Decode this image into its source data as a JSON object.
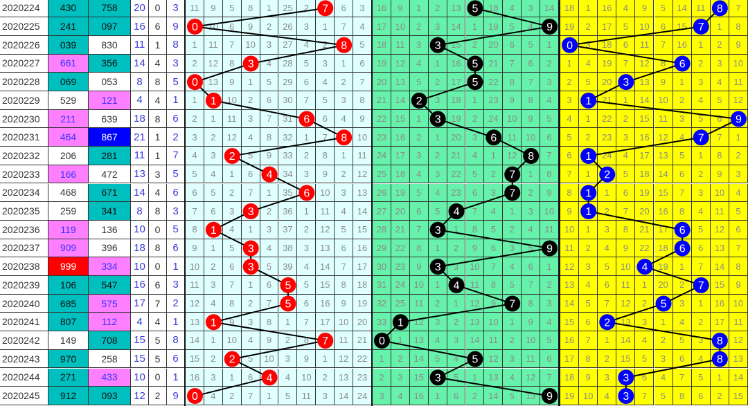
{
  "colors": {
    "zone1_bg": "#e0ffff",
    "zone2_bg": "#66f2aa",
    "zone3_bg": "#ffff00",
    "zone1_ball": "#ff0000",
    "zone2_ball": "#000000",
    "zone3_ball": "#0000ff",
    "teal": "#00bfbf",
    "pink": "#ff80ff",
    "blue": "#0000ff",
    "red": "#ff0000"
  },
  "chart_data": {
    "type": "table",
    "rows": [
      {
        "period": "2020224",
        "a": "430",
        "a_bg": "teal",
        "b": "758",
        "b_bg": "teal",
        "sum": "20",
        "span": "0",
        "tail": "3",
        "z1": [
          11,
          9,
          5,
          8,
          1,
          25,
          2,
          7,
          6,
          3
        ],
        "z2": [
          16,
          9,
          1,
          2,
          13,
          5,
          18,
          4,
          3,
          14
        ],
        "z3": [
          18,
          1,
          16,
          4,
          9,
          5,
          14,
          11,
          8,
          7
        ]
      },
      {
        "period": "2020225",
        "a": "241",
        "a_bg": "teal",
        "b": "097",
        "b_bg": "teal",
        "sum": "16",
        "span": "6",
        "tail": "9",
        "z1": [
          0,
          10,
          6,
          9,
          2,
          26,
          3,
          1,
          7,
          4
        ],
        "z2": [
          17,
          10,
          2,
          3,
          14,
          1,
          19,
          5,
          4,
          9
        ],
        "z3": [
          19,
          2,
          17,
          5,
          10,
          6,
          15,
          7,
          1,
          8
        ]
      },
      {
        "period": "2020226",
        "a": "039",
        "a_bg": "teal",
        "b": "830",
        "b_bg": "white",
        "sum": "11",
        "span": "1",
        "tail": "8",
        "z1": [
          1,
          11,
          7,
          10,
          3,
          27,
          4,
          2,
          8,
          5
        ],
        "z2": [
          18,
          11,
          3,
          3,
          15,
          2,
          20,
          6,
          5,
          1
        ],
        "z3": [
          0,
          3,
          18,
          6,
          11,
          7,
          16,
          1,
          2,
          9
        ]
      },
      {
        "period": "2020227",
        "a": "661",
        "a_bg": "pink",
        "b": "356",
        "b_bg": "teal",
        "sum": "14",
        "span": "4",
        "tail": "3",
        "z1": [
          2,
          12,
          8,
          3,
          4,
          28,
          5,
          3,
          1,
          6
        ],
        "z2": [
          19,
          12,
          4,
          1,
          16,
          5,
          21,
          7,
          6,
          2
        ],
        "z3": [
          1,
          4,
          19,
          7,
          12,
          8,
          6,
          2,
          3,
          10
        ]
      },
      {
        "period": "2020228",
        "a": "069",
        "a_bg": "teal",
        "b": "053",
        "b_bg": "white",
        "sum": "8",
        "span": "8",
        "tail": "5",
        "z1": [
          0,
          13,
          9,
          1,
          5,
          29,
          6,
          4,
          2,
          7
        ],
        "z2": [
          20,
          13,
          5,
          2,
          17,
          5,
          22,
          8,
          7,
          3
        ],
        "z3": [
          2,
          5,
          20,
          3,
          13,
          9,
          1,
          3,
          4,
          11
        ]
      },
      {
        "period": "2020229",
        "a": "529",
        "a_bg": "white",
        "b": "121",
        "b_bg": "pink",
        "sum": "4",
        "span": "4",
        "tail": "1",
        "z1": [
          1,
          1,
          10,
          2,
          6,
          30,
          7,
          5,
          3,
          8
        ],
        "z2": [
          21,
          14,
          2,
          3,
          18,
          1,
          23,
          9,
          8,
          4
        ],
        "z3": [
          3,
          1,
          21,
          1,
          14,
          10,
          2,
          4,
          5,
          12
        ]
      },
      {
        "period": "2020230",
        "a": "211",
        "a_bg": "pink",
        "b": "639",
        "b_bg": "white",
        "sum": "18",
        "span": "8",
        "tail": "6",
        "z1": [
          2,
          1,
          11,
          3,
          7,
          31,
          6,
          6,
          4,
          9
        ],
        "z2": [
          22,
          15,
          1,
          3,
          19,
          2,
          24,
          10,
          9,
          5
        ],
        "z3": [
          4,
          1,
          22,
          2,
          15,
          11,
          3,
          5,
          6,
          9
        ]
      },
      {
        "period": "2020231",
        "a": "464",
        "a_bg": "pink",
        "b": "867",
        "b_bg": "blue",
        "sum": "21",
        "span": "1",
        "tail": "2",
        "z1": [
          3,
          2,
          12,
          4,
          8,
          32,
          1,
          7,
          8,
          10
        ],
        "z2": [
          23,
          16,
          2,
          1,
          20,
          3,
          6,
          11,
          10,
          6
        ],
        "z3": [
          5,
          2,
          23,
          3,
          16,
          12,
          4,
          7,
          7,
          1
        ]
      },
      {
        "period": "2020232",
        "a": "206",
        "a_bg": "white",
        "b": "281",
        "b_bg": "teal",
        "sum": "11",
        "span": "1",
        "tail": "7",
        "z1": [
          4,
          3,
          2,
          5,
          9,
          33,
          2,
          8,
          1,
          11
        ],
        "z2": [
          24,
          17,
          3,
          2,
          21,
          4,
          1,
          12,
          8,
          7
        ],
        "z3": [
          6,
          1,
          24,
          4,
          17,
          13,
          5,
          1,
          8,
          2
        ]
      },
      {
        "period": "2020233",
        "a": "166",
        "a_bg": "pink",
        "b": "472",
        "b_bg": "white",
        "sum": "13",
        "span": "3",
        "tail": "5",
        "z1": [
          5,
          4,
          1,
          6,
          4,
          34,
          3,
          9,
          2,
          12
        ],
        "z2": [
          25,
          18,
          4,
          3,
          22,
          5,
          2,
          7,
          1,
          8
        ],
        "z3": [
          7,
          1,
          2,
          5,
          18,
          14,
          6,
          2,
          9,
          3
        ]
      },
      {
        "period": "2020234",
        "a": "468",
        "a_bg": "white",
        "b": "671",
        "b_bg": "teal",
        "sum": "14",
        "span": "4",
        "tail": "6",
        "z1": [
          6,
          5,
          2,
          7,
          1,
          35,
          6,
          10,
          3,
          13
        ],
        "z2": [
          26,
          19,
          5,
          4,
          23,
          6,
          3,
          7,
          2,
          9
        ],
        "z3": [
          8,
          1,
          1,
          6,
          19,
          15,
          7,
          3,
          10,
          4
        ]
      },
      {
        "period": "2020235",
        "a": "259",
        "a_bg": "white",
        "b": "341",
        "b_bg": "teal",
        "sum": "8",
        "span": "8",
        "tail": "3",
        "z1": [
          7,
          6,
          3,
          3,
          2,
          36,
          1,
          11,
          4,
          14
        ],
        "z2": [
          27,
          20,
          6,
          5,
          4,
          7,
          4,
          1,
          3,
          10
        ],
        "z3": [
          9,
          1,
          2,
          7,
          20,
          16,
          8,
          4,
          11,
          5
        ]
      },
      {
        "period": "2020236",
        "a": "119",
        "a_bg": "pink",
        "b": "136",
        "b_bg": "white",
        "sum": "10",
        "span": "0",
        "tail": "5",
        "z1": [
          8,
          1,
          4,
          1,
          3,
          37,
          2,
          12,
          5,
          15
        ],
        "z2": [
          28,
          21,
          7,
          3,
          1,
          8,
          5,
          2,
          4,
          11
        ],
        "z3": [
          10,
          1,
          3,
          8,
          21,
          17,
          6,
          5,
          12,
          6
        ]
      },
      {
        "period": "2020237",
        "a": "909",
        "a_bg": "pink",
        "b": "396",
        "b_bg": "white",
        "sum": "18",
        "span": "8",
        "tail": "6",
        "z1": [
          9,
          1,
          5,
          3,
          4,
          38,
          3,
          13,
          6,
          16
        ],
        "z2": [
          29,
          22,
          8,
          1,
          2,
          9,
          6,
          3,
          5,
          9
        ],
        "z3": [
          11,
          2,
          4,
          9,
          22,
          18,
          6,
          6,
          13,
          7
        ]
      },
      {
        "period": "2020238",
        "a": "999",
        "a_bg": "red",
        "b": "334",
        "b_bg": "pink",
        "sum": "10",
        "span": "0",
        "tail": "1",
        "z1": [
          10,
          2,
          6,
          3,
          5,
          39,
          4,
          14,
          7,
          17
        ],
        "z2": [
          30,
          23,
          9,
          3,
          3,
          10,
          7,
          4,
          6,
          1
        ],
        "z3": [
          12,
          3,
          5,
          10,
          4,
          19,
          1,
          7,
          14,
          8
        ]
      },
      {
        "period": "2020239",
        "a": "106",
        "a_bg": "teal",
        "b": "547",
        "b_bg": "teal",
        "sum": "16",
        "span": "6",
        "tail": "3",
        "z1": [
          11,
          3,
          7,
          1,
          6,
          5,
          5,
          15,
          8,
          18
        ],
        "z2": [
          31,
          24,
          10,
          1,
          4,
          11,
          8,
          5,
          7,
          2
        ],
        "z3": [
          13,
          4,
          6,
          11,
          1,
          20,
          2,
          7,
          15,
          9
        ]
      },
      {
        "period": "2020240",
        "a": "685",
        "a_bg": "teal",
        "b": "575",
        "b_bg": "pink",
        "sum": "17",
        "span": "7",
        "tail": "2",
        "z1": [
          12,
          4,
          8,
          2,
          7,
          5,
          6,
          16,
          9,
          19
        ],
        "z2": [
          32,
          25,
          11,
          2,
          1,
          12,
          9,
          7,
          8,
          3
        ],
        "z3": [
          14,
          5,
          7,
          12,
          2,
          5,
          3,
          1,
          16,
          10
        ]
      },
      {
        "period": "2020241",
        "a": "807",
        "a_bg": "teal",
        "b": "112",
        "b_bg": "pink",
        "sum": "4",
        "span": "4",
        "tail": "1",
        "z1": [
          13,
          1,
          9,
          3,
          8,
          1,
          7,
          17,
          10,
          20
        ],
        "z2": [
          33,
          1,
          12,
          3,
          2,
          13,
          10,
          1,
          9,
          4
        ],
        "z3": [
          15,
          6,
          2,
          13,
          3,
          1,
          4,
          2,
          17,
          11
        ]
      },
      {
        "period": "2020242",
        "a": "149",
        "a_bg": "white",
        "b": "708",
        "b_bg": "teal",
        "sum": "15",
        "span": "5",
        "tail": "8",
        "z1": [
          14,
          1,
          10,
          4,
          9,
          2,
          8,
          7,
          11,
          21
        ],
        "z2": [
          0,
          1,
          13,
          4,
          3,
          14,
          11,
          2,
          10,
          5
        ],
        "z3": [
          16,
          7,
          1,
          14,
          4,
          2,
          5,
          3,
          8,
          12
        ]
      },
      {
        "period": "2020243",
        "a": "970",
        "a_bg": "teal",
        "b": "258",
        "b_bg": "white",
        "sum": "15",
        "span": "5",
        "tail": "6",
        "z1": [
          15,
          2,
          2,
          5,
          10,
          3,
          9,
          1,
          12,
          22
        ],
        "z2": [
          1,
          2,
          14,
          5,
          4,
          5,
          12,
          3,
          11,
          6
        ],
        "z3": [
          17,
          8,
          2,
          15,
          5,
          3,
          6,
          4,
          8,
          13
        ]
      },
      {
        "period": "2020244",
        "a": "271",
        "a_bg": "teal",
        "b": "433",
        "b_bg": "pink",
        "sum": "10",
        "span": "0",
        "tail": "1",
        "z1": [
          16,
          3,
          1,
          6,
          4,
          4,
          10,
          2,
          13,
          23
        ],
        "z2": [
          2,
          3,
          15,
          3,
          5,
          1,
          13,
          4,
          12,
          7
        ],
        "z3": [
          18,
          9,
          3,
          3,
          6,
          4,
          7,
          5,
          1,
          14
        ]
      },
      {
        "period": "2020245",
        "a": "912",
        "a_bg": "teal",
        "b": "093",
        "b_bg": "teal",
        "sum": "12",
        "span": "2",
        "tail": "9",
        "z1": [
          0,
          4,
          2,
          7,
          1,
          5,
          11,
          3,
          14,
          24
        ],
        "z2": [
          3,
          4,
          16,
          1,
          6,
          2,
          14,
          5,
          13,
          9
        ],
        "z3": [
          19,
          10,
          4,
          3,
          7,
          5,
          8,
          6,
          2,
          15
        ]
      }
    ]
  }
}
